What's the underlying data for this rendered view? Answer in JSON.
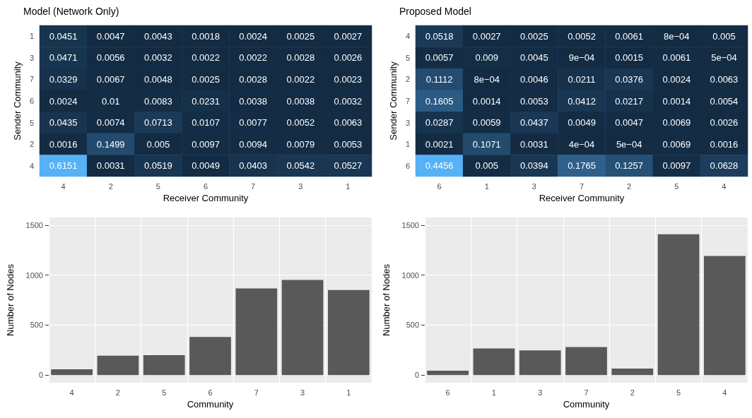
{
  "chart_data": [
    {
      "type": "heatmap",
      "title": "Model (Network Only)",
      "xlabel": "Receiver Community",
      "ylabel": "Sender Community",
      "categories": [
        "4",
        "2",
        "5",
        "6",
        "7",
        "3",
        "1"
      ],
      "y_categories": [
        "1",
        "3",
        "7",
        "6",
        "5",
        "2",
        "4"
      ],
      "data_labels": true,
      "colors": [
        "#132b43",
        "#56b1f7"
      ],
      "cells": [
        [
          0.0451,
          0.0047,
          0.0043,
          0.0018,
          0.0024,
          0.0025,
          0.0027
        ],
        [
          0.0471,
          0.0056,
          0.0032,
          0.0022,
          0.0022,
          0.0028,
          0.0026
        ],
        [
          0.0329,
          0.0067,
          0.0048,
          0.0025,
          0.0028,
          0.0022,
          0.0023
        ],
        [
          0.0024,
          0.01,
          0.0083,
          0.0231,
          0.0038,
          0.0038,
          0.0032
        ],
        [
          0.0435,
          0.0074,
          0.0713,
          0.0107,
          0.0077,
          0.0052,
          0.0063
        ],
        [
          0.0016,
          0.1499,
          0.005,
          0.0097,
          0.0094,
          0.0079,
          0.0053
        ],
        [
          0.6151,
          0.0031,
          0.0519,
          0.0049,
          0.0403,
          0.0542,
          0.0527
        ]
      ]
    },
    {
      "type": "heatmap",
      "title": "Proposed Model",
      "xlabel": "Receiver Community",
      "ylabel": "Sender Community",
      "categories": [
        "6",
        "1",
        "3",
        "7",
        "2",
        "5",
        "4"
      ],
      "y_categories": [
        "4",
        "5",
        "2",
        "7",
        "3",
        "1",
        "6"
      ],
      "data_labels": true,
      "colors": [
        "#132b43",
        "#56b1f7"
      ],
      "cells": [
        [
          0.0518,
          0.0027,
          0.0025,
          0.0052,
          0.0061,
          0.0008,
          0.005
        ],
        [
          0.0057,
          0.009,
          0.0045,
          0.0009,
          0.0015,
          0.0061,
          0.0005
        ],
        [
          0.1112,
          0.0008,
          0.0046,
          0.0211,
          0.0376,
          0.0024,
          0.0063
        ],
        [
          0.1605,
          0.0014,
          0.0053,
          0.0412,
          0.0217,
          0.0014,
          0.0054
        ],
        [
          0.0287,
          0.0059,
          0.0437,
          0.0049,
          0.0047,
          0.0069,
          0.0026
        ],
        [
          0.0021,
          0.1071,
          0.0031,
          0.0004,
          0.0005,
          0.0069,
          0.0016
        ],
        [
          0.4456,
          0.005,
          0.0394,
          0.1765,
          0.1257,
          0.0097,
          0.0628
        ]
      ],
      "cell_labels": [
        [
          "0.0518",
          "0.0027",
          "0.0025",
          "0.0052",
          "0.0061",
          "8e−04",
          "0.005"
        ],
        [
          "0.0057",
          "0.009",
          "0.0045",
          "9e−04",
          "0.0015",
          "0.0061",
          "5e−04"
        ],
        [
          "0.1112",
          "8e−04",
          "0.0046",
          "0.0211",
          "0.0376",
          "0.0024",
          "0.0063"
        ],
        [
          "0.1605",
          "0.0014",
          "0.0053",
          "0.0412",
          "0.0217",
          "0.0014",
          "0.0054"
        ],
        [
          "0.0287",
          "0.0059",
          "0.0437",
          "0.0049",
          "0.0047",
          "0.0069",
          "0.0026"
        ],
        [
          "0.0021",
          "0.1071",
          "0.0031",
          "4e−04",
          "5e−04",
          "0.0069",
          "0.0016"
        ],
        [
          "0.4456",
          "0.005",
          "0.0394",
          "0.1765",
          "0.1257",
          "0.0097",
          "0.0628"
        ]
      ]
    },
    {
      "type": "bar",
      "xlabel": "Community",
      "ylabel": "Number of Nodes",
      "categories": [
        "4",
        "2",
        "5",
        "6",
        "7",
        "3",
        "1"
      ],
      "values": [
        58,
        194,
        200,
        382,
        866,
        952,
        850
      ],
      "color": "#595959",
      "ylim": [
        -76,
        1576
      ],
      "yticks": [
        0,
        500,
        1000,
        1500
      ],
      "grid": true
    },
    {
      "type": "bar",
      "xlabel": "Community",
      "ylabel": "Number of Nodes",
      "categories": [
        "6",
        "1",
        "3",
        "7",
        "2",
        "5",
        "4"
      ],
      "values": [
        44,
        267,
        247,
        281,
        65,
        1408,
        1191
      ],
      "color": "#595959",
      "ylim": [
        -76,
        1576
      ],
      "yticks": [
        0,
        500,
        1000,
        1500
      ],
      "grid": true
    }
  ]
}
